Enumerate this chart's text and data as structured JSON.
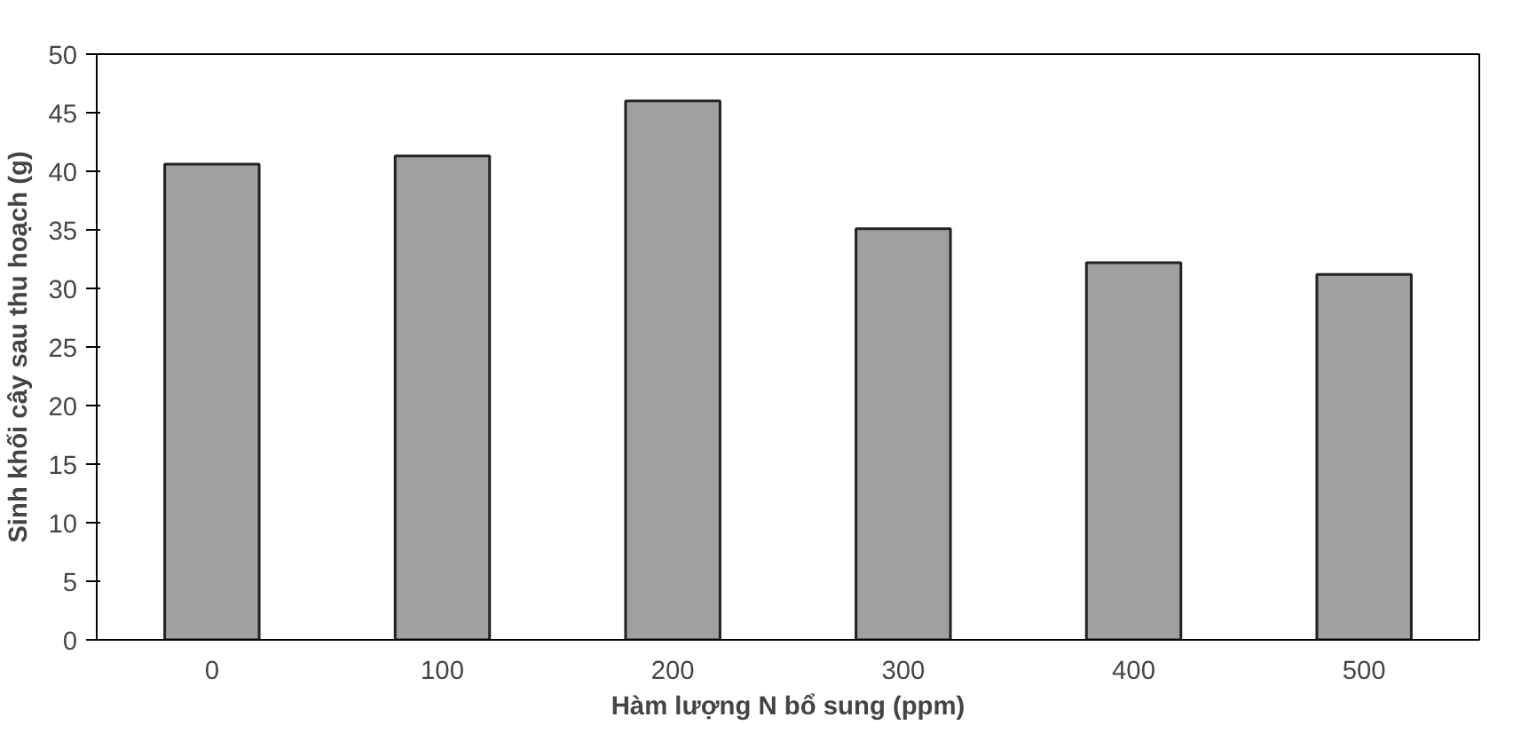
{
  "chart_data": {
    "type": "bar",
    "xlabel": "Hàm lượng N bổ sung (ppm)",
    "ylabel": "Sinh khối cây sau thu hoạch (g)",
    "categories": [
      "0",
      "100",
      "200",
      "300",
      "400",
      "500"
    ],
    "values": [
      40.6,
      41.3,
      46.0,
      35.1,
      32.2,
      31.2
    ],
    "color": "#a0a0a0",
    "ylim": [
      0,
      50
    ],
    "yticks": [
      0,
      5,
      10,
      15,
      20,
      25,
      30,
      35,
      40,
      45,
      50
    ],
    "grid": false
  }
}
